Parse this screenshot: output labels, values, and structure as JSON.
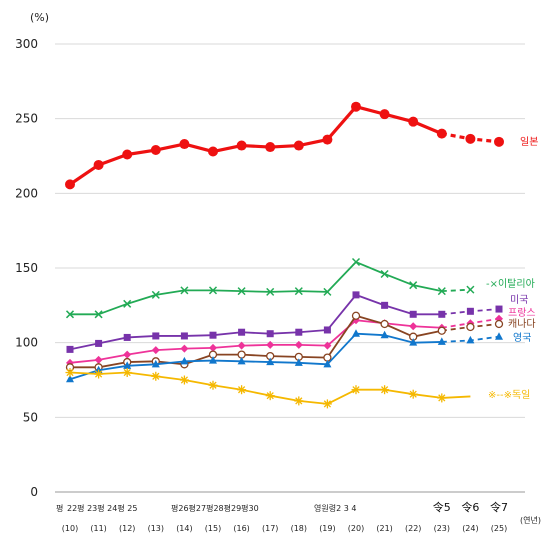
{
  "chart_data": {
    "type": "line",
    "unit_label": "(%)",
    "x_axis_note": "(연년)",
    "ylim": [
      0,
      300
    ],
    "yticks": [
      0,
      50,
      100,
      150,
      200,
      250,
      300
    ],
    "grid": true,
    "era_labels": [
      "평",
      "22평 23평 24평 25",
      "평26평27평28평29평30",
      "영원령2 3 4",
      "令5",
      "令6",
      "令7"
    ],
    "x": [
      "(10)",
      "(11)",
      "(12)",
      "(13)",
      "(14)",
      "(15)",
      "(16)",
      "(17)",
      "(18)",
      "(19)",
      "(20)",
      "(21)",
      "(22)",
      "(23)",
      "(24)",
      "(25)"
    ],
    "series": [
      {
        "name": "일본",
        "color": "#ee1111",
        "marker": "circle-filled",
        "values": [
          206,
          219,
          226,
          229,
          233,
          228,
          232,
          231,
          232,
          236,
          258,
          253,
          248,
          240,
          236.5,
          234.5
        ],
        "dashed_from": 13
      },
      {
        "name": "-×이탈리아",
        "color": "#22aa55",
        "marker": "x",
        "values": [
          119,
          119,
          126,
          132,
          135,
          135,
          134.5,
          134,
          134.5,
          134,
          154,
          146,
          138.5,
          134.5,
          135.5,
          null
        ],
        "dashed_from": 13
      },
      {
        "name": "미국",
        "color": "#7733aa",
        "marker": "square",
        "values": [
          95.5,
          99.5,
          103.5,
          104.5,
          104.5,
          105,
          107,
          106,
          107,
          108.5,
          132,
          125,
          119,
          119,
          121,
          122.5
        ],
        "dashed_from": 13
      },
      {
        "name": "프랑스",
        "color": "#ee3399",
        "marker": "diamond",
        "values": [
          86.5,
          88.5,
          92,
          95,
          96,
          96.5,
          98,
          98.5,
          98.5,
          98,
          115,
          113,
          111,
          110,
          113,
          116
        ],
        "dashed_from": 13
      },
      {
        "name": "캐나다",
        "color": "#884422",
        "marker": "circle-open",
        "values": [
          83.5,
          83.5,
          87,
          87.5,
          85.5,
          92,
          92,
          91,
          90.5,
          90,
          118,
          112.5,
          104,
          108,
          110.5,
          112.5
        ],
        "dashed_from": 13
      },
      {
        "name": "영국",
        "color": "#1177cc",
        "marker": "triangle",
        "values": [
          75.5,
          81.5,
          84.5,
          85.5,
          87.5,
          88,
          87.5,
          87,
          86.5,
          85.5,
          106,
          105,
          100,
          100.5,
          101.5,
          104
        ],
        "dashed_from": 13
      },
      {
        "name": "※--※독일",
        "color": "#f5b800",
        "marker": "asterisk",
        "values": [
          80,
          79,
          80,
          77.5,
          75,
          71.5,
          68.5,
          64.5,
          61,
          59,
          68.5,
          68.5,
          65.5,
          63,
          64,
          null
        ],
        "dashed_from": 99
      }
    ]
  }
}
